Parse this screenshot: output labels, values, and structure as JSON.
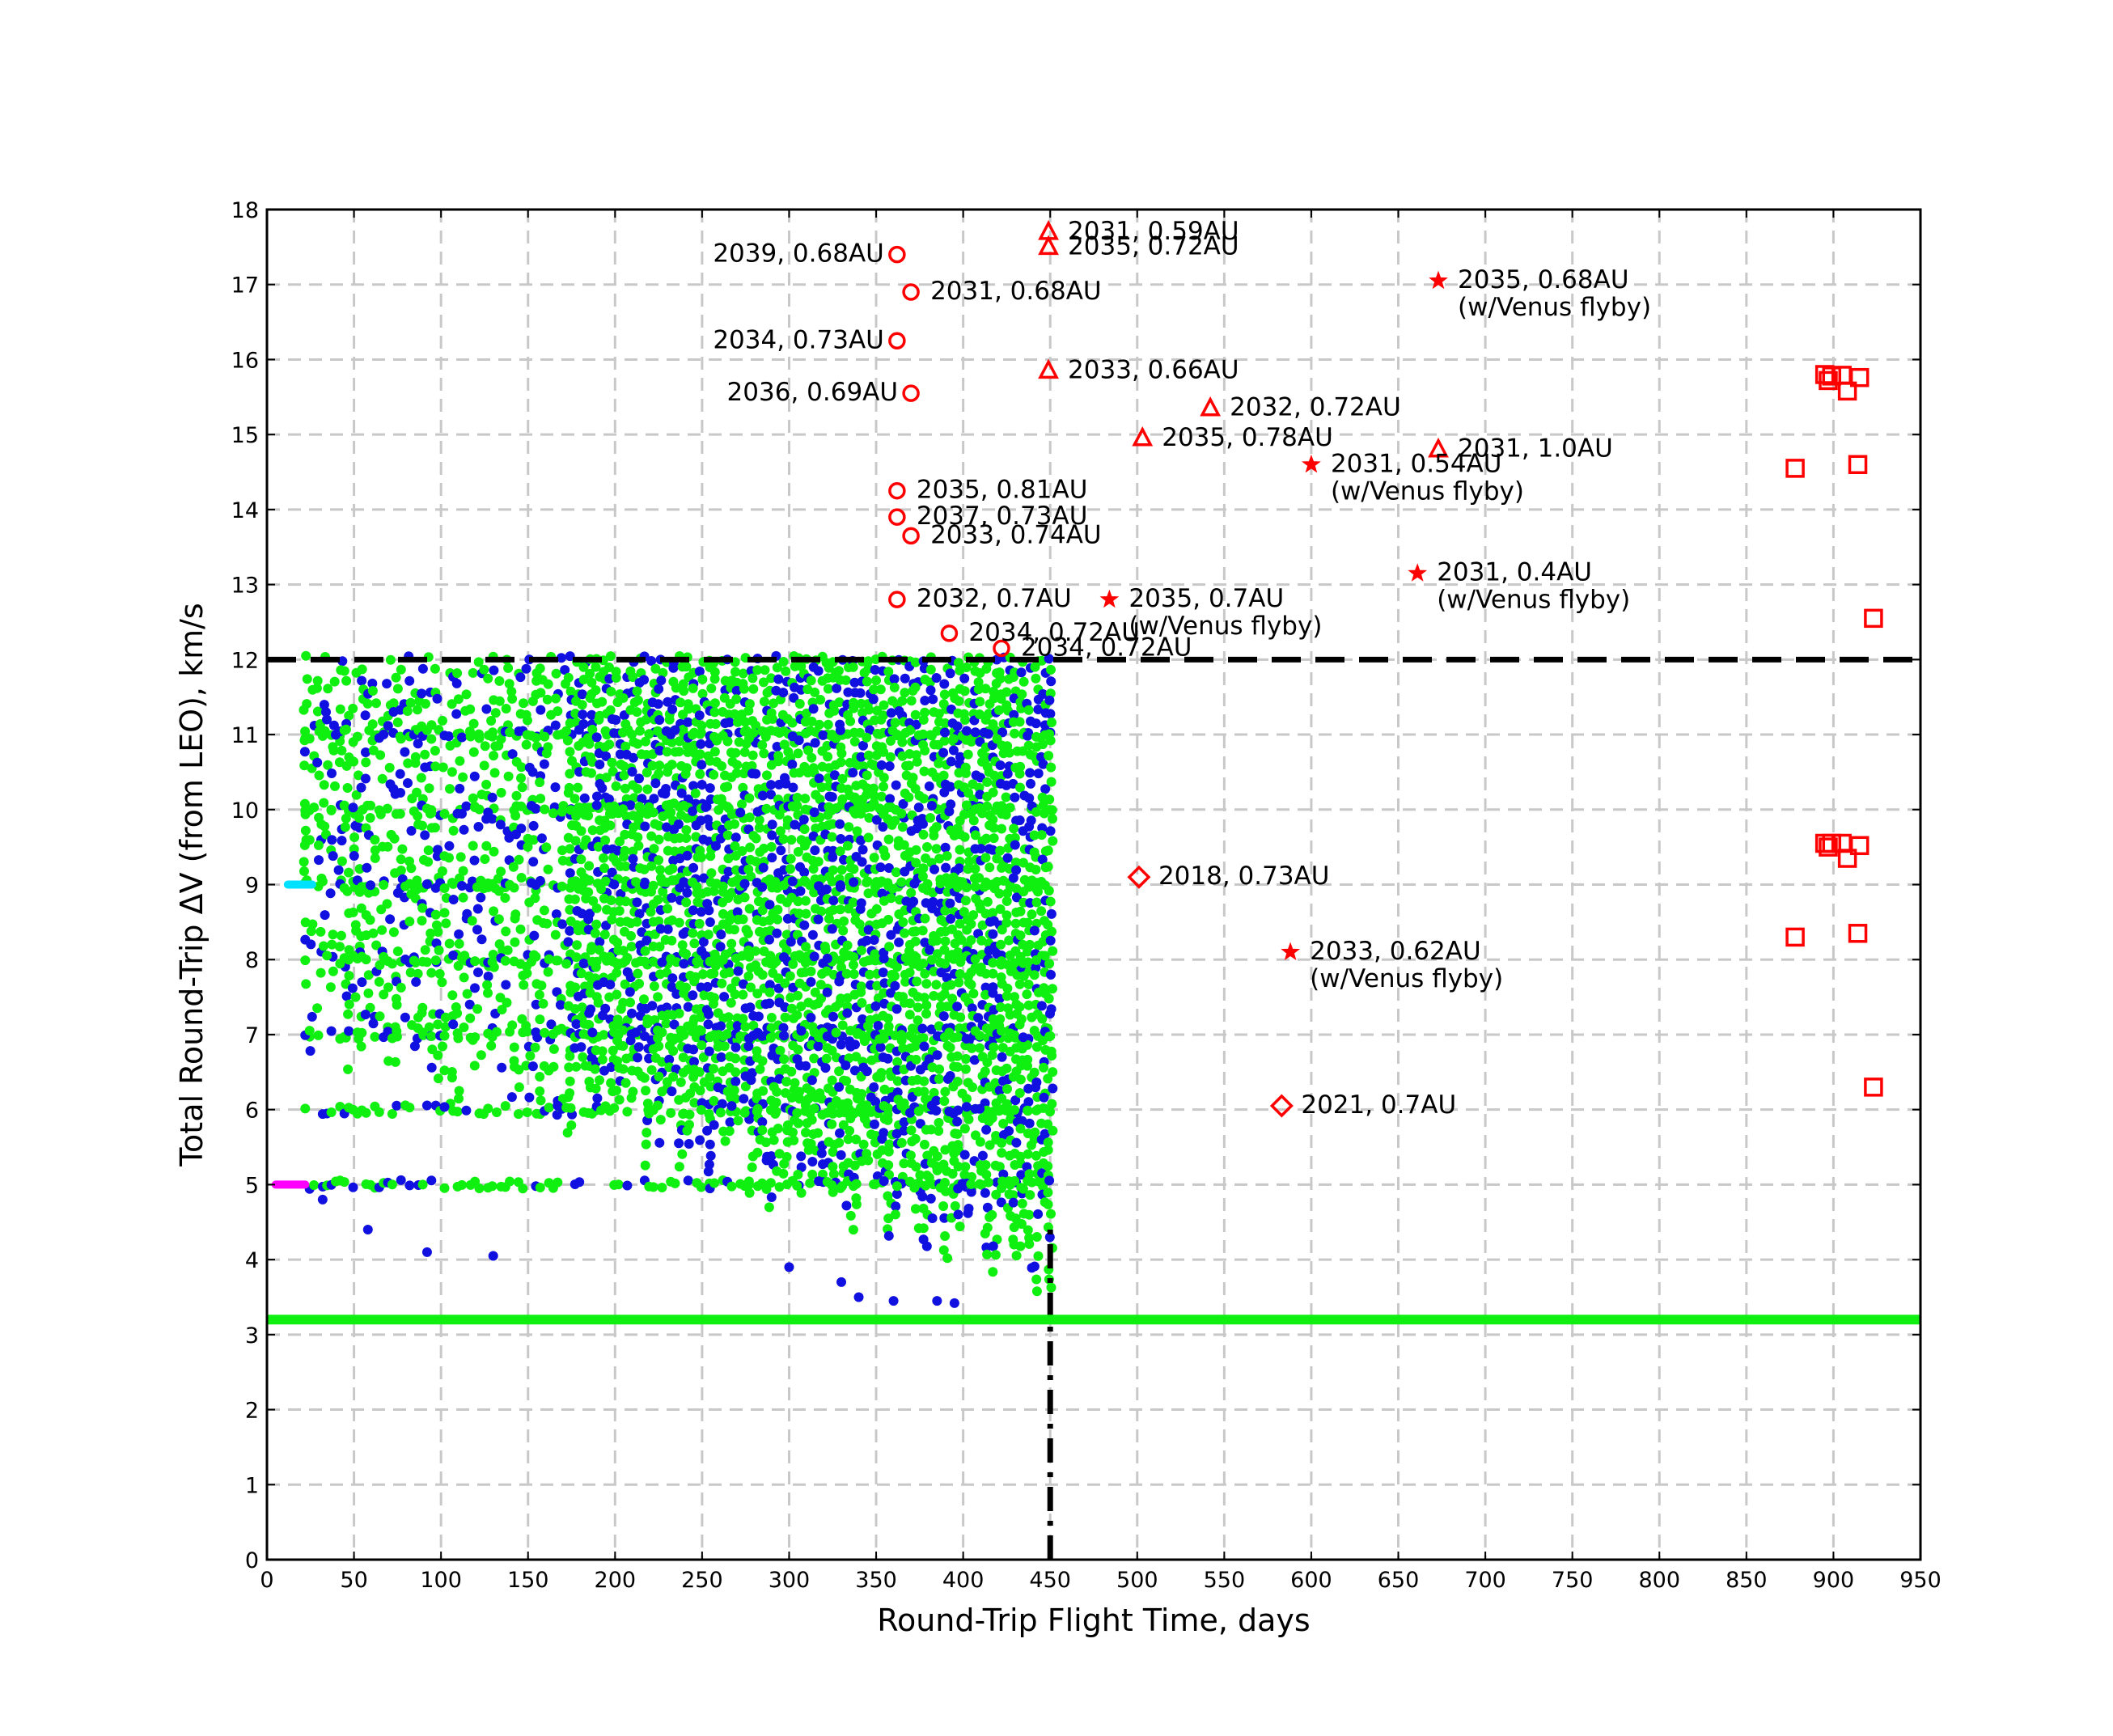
{
  "chart_data": {
    "type": "scatter",
    "xlabel": "Round-Trip Flight Time, days",
    "ylabel": "Total Round-Trip ΔV (from LEO), km/s",
    "xlim": [
      0,
      950
    ],
    "ylim": [
      0,
      18
    ],
    "xticks": [
      0,
      50,
      100,
      150,
      200,
      250,
      300,
      350,
      400,
      450,
      500,
      550,
      600,
      650,
      700,
      750,
      800,
      850,
      900,
      950
    ],
    "yticks": [
      0,
      1,
      2,
      3,
      4,
      5,
      6,
      7,
      8,
      9,
      10,
      11,
      12,
      13,
      14,
      15,
      16,
      17,
      18
    ],
    "grid": true,
    "colors": {
      "dense_blue": "#1010e0",
      "dense_green": "#10f010",
      "marker_red": "#ff0000",
      "reference_green": "#10f010",
      "magenta": "#ff00ff",
      "cyan": "#00e0ff"
    },
    "reference_lines": [
      {
        "orientation": "horizontal",
        "y": 12,
        "style": "dashed",
        "color": "#000000"
      },
      {
        "orientation": "vertical",
        "x": 450,
        "y_from": 0,
        "y_to": 4.5,
        "style": "dash-dot",
        "color": "#000000"
      },
      {
        "orientation": "horizontal",
        "y": 3.2,
        "style": "solid",
        "color": "#10f010"
      }
    ],
    "short_segments": [
      {
        "x_from": 5,
        "x_to": 22,
        "y": 5.0,
        "color": "#ff00ff"
      },
      {
        "x_from": 12,
        "x_to": 26,
        "y": 9.0,
        "color": "#00e0ff"
      }
    ],
    "dense_region": {
      "x_range": [
        22,
        450
      ],
      "y_range": [
        3.4,
        12
      ]
    },
    "annotated_points": [
      {
        "marker": "circle",
        "x": 362,
        "y": 17.4,
        "label": "2039, 0.68AU",
        "label_side": "left"
      },
      {
        "marker": "circle",
        "x": 370,
        "y": 16.9,
        "label": "2031, 0.68AU",
        "label_side": "right"
      },
      {
        "marker": "circle",
        "x": 362,
        "y": 16.25,
        "label": "2034, 0.73AU",
        "label_side": "left"
      },
      {
        "marker": "circle",
        "x": 370,
        "y": 15.55,
        "label": "2036, 0.69AU",
        "label_side": "left"
      },
      {
        "marker": "circle",
        "x": 362,
        "y": 14.25,
        "label": "2035, 0.81AU",
        "label_side": "right"
      },
      {
        "marker": "circle",
        "x": 362,
        "y": 13.9,
        "label": "2037, 0.73AU",
        "label_side": "right"
      },
      {
        "marker": "circle",
        "x": 370,
        "y": 13.65,
        "label": "2033, 0.74AU",
        "label_side": "right"
      },
      {
        "marker": "circle",
        "x": 362,
        "y": 12.8,
        "label": "2032, 0.7AU",
        "label_side": "right"
      },
      {
        "marker": "circle",
        "x": 392,
        "y": 12.35,
        "label": "2034, 0.72AU",
        "label_side": "right"
      },
      {
        "marker": "circle",
        "x": 422,
        "y": 12.15,
        "label": "2034, 0.72AU",
        "label_side": "right"
      },
      {
        "marker": "triangle",
        "x": 449,
        "y": 17.7,
        "label": "2031, 0.59AU",
        "label_side": "right"
      },
      {
        "marker": "triangle",
        "x": 449,
        "y": 17.5,
        "label": "2035, 0.72AU",
        "label_side": "right"
      },
      {
        "marker": "triangle",
        "x": 449,
        "y": 15.85,
        "label": "2033, 0.66AU",
        "label_side": "right"
      },
      {
        "marker": "triangle",
        "x": 542,
        "y": 15.35,
        "label": "2032, 0.72AU",
        "label_side": "right"
      },
      {
        "marker": "triangle",
        "x": 503,
        "y": 14.95,
        "label": "2035, 0.78AU",
        "label_side": "right"
      },
      {
        "marker": "triangle",
        "x": 673,
        "y": 14.8,
        "label": "2031, 1.0AU",
        "label_side": "right"
      },
      {
        "marker": "star",
        "x": 673,
        "y": 17.05,
        "label": "2035, 0.68AU",
        "label2": "(w/Venus flyby)",
        "label_side": "right"
      },
      {
        "marker": "star",
        "x": 600,
        "y": 14.6,
        "label": "2031, 0.54AU",
        "label2": "(w/Venus flyby)",
        "label_side": "right"
      },
      {
        "marker": "star",
        "x": 484,
        "y": 12.8,
        "label": "2035, 0.7AU",
        "label2": "(w/Venus flyby)",
        "label_side": "right"
      },
      {
        "marker": "star",
        "x": 661,
        "y": 13.15,
        "label": "2031, 0.4AU",
        "label2": "(w/Venus flyby)",
        "label_side": "right"
      },
      {
        "marker": "star",
        "x": 588,
        "y": 8.1,
        "label": "2033, 0.62AU",
        "label2": "(w/Venus flyby)",
        "label_side": "right"
      },
      {
        "marker": "diamond",
        "x": 501,
        "y": 9.1,
        "label": "2018, 0.73AU",
        "label_side": "right"
      },
      {
        "marker": "diamond",
        "x": 583,
        "y": 6.05,
        "label": "2021, 0.7AU",
        "label_side": "right"
      }
    ],
    "square_points": [
      {
        "x": 895,
        "y": 15.8
      },
      {
        "x": 897,
        "y": 15.72
      },
      {
        "x": 899,
        "y": 15.78
      },
      {
        "x": 905,
        "y": 15.79
      },
      {
        "x": 908,
        "y": 15.58
      },
      {
        "x": 915,
        "y": 15.76
      },
      {
        "x": 878,
        "y": 14.55
      },
      {
        "x": 914,
        "y": 14.6
      },
      {
        "x": 923,
        "y": 12.55
      },
      {
        "x": 895,
        "y": 9.55
      },
      {
        "x": 897,
        "y": 9.5
      },
      {
        "x": 899,
        "y": 9.55
      },
      {
        "x": 905,
        "y": 9.55
      },
      {
        "x": 908,
        "y": 9.35
      },
      {
        "x": 915,
        "y": 9.52
      },
      {
        "x": 878,
        "y": 8.3
      },
      {
        "x": 914,
        "y": 8.35
      },
      {
        "x": 923,
        "y": 6.3
      }
    ]
  }
}
